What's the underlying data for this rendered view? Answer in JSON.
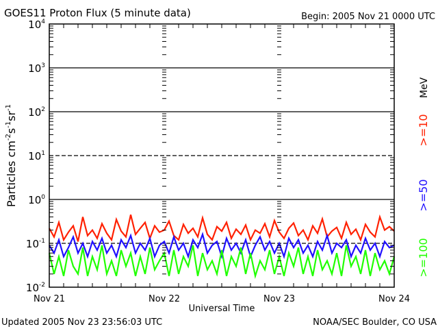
{
  "chart_data": {
    "type": "line",
    "title": "GOES11 Proton Flux (5 minute data)",
    "begin_label": "Begin: 2005 Nov 21 0000 UTC",
    "xlabel": "Universal Time",
    "ylabel": "Particles cm-2 s-1 sr-1",
    "ylabel_parts": [
      "Particles cm",
      "-2",
      "s",
      "-1",
      "sr",
      "-1"
    ],
    "yscale": "log",
    "ylim": [
      0.01,
      10000
    ],
    "y_ticks": [
      {
        "base": "10",
        "exp": "4",
        "value": 10000
      },
      {
        "base": "10",
        "exp": "3",
        "value": 1000
      },
      {
        "base": "10",
        "exp": "2",
        "value": 100
      },
      {
        "base": "10",
        "exp": "1",
        "value": 10
      },
      {
        "base": "10",
        "exp": "0",
        "value": 1
      },
      {
        "base": "10",
        "exp": "-1",
        "value": 0.1
      },
      {
        "base": "10",
        "exp": "-2",
        "value": 0.01
      }
    ],
    "x_unit": "hours since 2005 Nov 21 00:00 UTC",
    "xlim": [
      0,
      72
    ],
    "x_ticks": [
      {
        "label": "Nov 21",
        "value": 0
      },
      {
        "label": "Nov 22",
        "value": 24
      },
      {
        "label": "Nov 23",
        "value": 48
      },
      {
        "label": "Nov 24",
        "value": 72
      }
    ],
    "legend_unit": "MeV",
    "series": [
      {
        "name": ">=10",
        "color": "#ff2000",
        "values": [
          0.22,
          0.14,
          0.3,
          0.12,
          0.18,
          0.25,
          0.11,
          0.4,
          0.15,
          0.2,
          0.13,
          0.28,
          0.17,
          0.12,
          0.35,
          0.19,
          0.14,
          0.45,
          0.16,
          0.22,
          0.3,
          0.13,
          0.25,
          0.18,
          0.2,
          0.32,
          0.15,
          0.12,
          0.27,
          0.17,
          0.22,
          0.14,
          0.38,
          0.16,
          0.12,
          0.24,
          0.19,
          0.3,
          0.13,
          0.21,
          0.16,
          0.26,
          0.12,
          0.2,
          0.17,
          0.28,
          0.14,
          0.33,
          0.18,
          0.13,
          0.22,
          0.29,
          0.15,
          0.2,
          0.12,
          0.25,
          0.17,
          0.36,
          0.14,
          0.19,
          0.23,
          0.13,
          0.3,
          0.16,
          0.21,
          0.12,
          0.27,
          0.18,
          0.14,
          0.4,
          0.2,
          0.24,
          0.19
        ]
      },
      {
        "name": ">=50",
        "color": "#2010ff",
        "values": [
          0.09,
          0.06,
          0.12,
          0.05,
          0.08,
          0.14,
          0.06,
          0.1,
          0.05,
          0.11,
          0.07,
          0.13,
          0.06,
          0.09,
          0.05,
          0.12,
          0.08,
          0.15,
          0.06,
          0.1,
          0.07,
          0.13,
          0.05,
          0.09,
          0.11,
          0.06,
          0.14,
          0.07,
          0.1,
          0.05,
          0.12,
          0.08,
          0.16,
          0.06,
          0.09,
          0.11,
          0.05,
          0.13,
          0.07,
          0.1,
          0.06,
          0.12,
          0.05,
          0.09,
          0.14,
          0.07,
          0.11,
          0.06,
          0.1,
          0.05,
          0.13,
          0.08,
          0.12,
          0.06,
          0.09,
          0.05,
          0.11,
          0.07,
          0.15,
          0.06,
          0.1,
          0.08,
          0.12,
          0.05,
          0.09,
          0.06,
          0.13,
          0.07,
          0.1,
          0.05,
          0.11,
          0.08,
          0.09
        ]
      },
      {
        "name": ">=100",
        "color": "#20ff00",
        "values": [
          0.06,
          0.02,
          0.05,
          0.018,
          0.07,
          0.03,
          0.02,
          0.08,
          0.018,
          0.05,
          0.025,
          0.09,
          0.02,
          0.04,
          0.018,
          0.07,
          0.03,
          0.06,
          0.018,
          0.05,
          0.02,
          0.08,
          0.025,
          0.04,
          0.06,
          0.018,
          0.07,
          0.02,
          0.05,
          0.03,
          0.09,
          0.018,
          0.06,
          0.025,
          0.04,
          0.02,
          0.07,
          0.018,
          0.05,
          0.03,
          0.08,
          0.02,
          0.06,
          0.018,
          0.04,
          0.025,
          0.07,
          0.02,
          0.05,
          0.018,
          0.06,
          0.03,
          0.08,
          0.02,
          0.05,
          0.018,
          0.07,
          0.025,
          0.04,
          0.02,
          0.06,
          0.018,
          0.09,
          0.03,
          0.05,
          0.02,
          0.07,
          0.018,
          0.06,
          0.025,
          0.04,
          0.02,
          0.05
        ]
      }
    ]
  },
  "footer": {
    "updated": "Updated 2005 Nov 23 23:56:03 UTC",
    "source": "NOAA/SEC Boulder, CO USA"
  }
}
